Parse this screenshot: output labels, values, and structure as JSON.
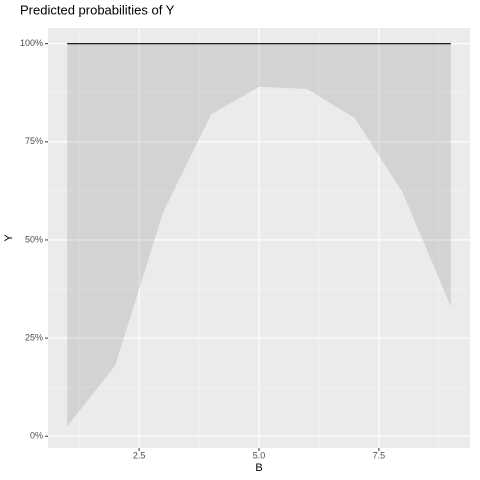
{
  "chart_data": {
    "type": "line",
    "title": "Predicted probabilities of Y",
    "xlabel": "B",
    "ylabel": "Y",
    "x": [
      1,
      2,
      3,
      4,
      5,
      6,
      7,
      8,
      9
    ],
    "values": [
      100,
      100,
      100,
      100,
      100,
      100,
      100,
      100,
      100
    ],
    "color": "#000000",
    "ribbon_low": [
      2.5,
      18,
      57,
      82,
      89,
      88.5,
      81,
      62,
      33
    ],
    "ribbon_high": [
      100,
      100,
      100,
      100,
      100,
      100,
      100,
      100,
      100
    ],
    "ribbon_color": "#000000",
    "ribbon_alpha": 0.1,
    "xlim": [
      0.6,
      9.4
    ],
    "ylim": [
      -3,
      104
    ],
    "xticks": [
      {
        "value": 2.5,
        "label": "2.5"
      },
      {
        "value": 5,
        "label": "5.0"
      },
      {
        "value": 7.5,
        "label": "7.5"
      }
    ],
    "yticks": [
      {
        "value": 0,
        "label": "0%"
      },
      {
        "value": 25,
        "label": "25%"
      },
      {
        "value": 50,
        "label": "50%"
      },
      {
        "value": 75,
        "label": "75%"
      },
      {
        "value": 100,
        "label": "100%"
      }
    ],
    "x_minor_grid": [
      1.25,
      3.75,
      6.25,
      8.75
    ],
    "y_minor_grid": [
      12.5,
      37.5,
      62.5,
      87.5
    ],
    "grid": true
  }
}
